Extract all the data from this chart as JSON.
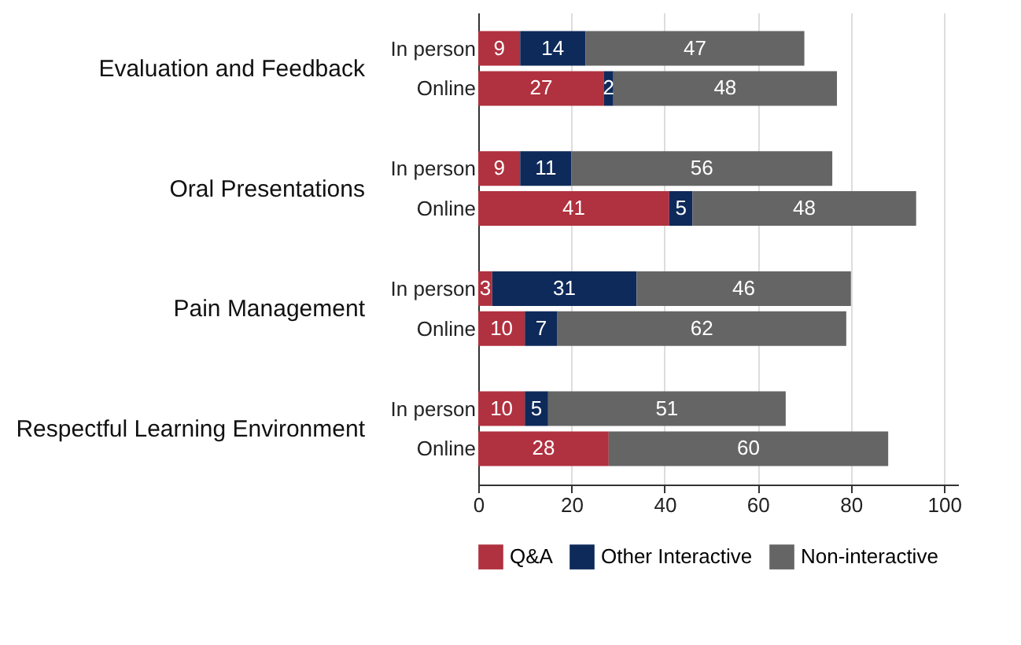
{
  "chart_data": {
    "type": "bar",
    "orientation": "horizontal",
    "stacked": true,
    "categories": [
      "In person",
      "Online",
      "In person",
      "Online",
      "In person",
      "Online",
      "In person",
      "Online"
    ],
    "annotations": [
      "Evaluation and Feedback",
      "Oral Presentations",
      "Pain Management",
      "Respectful Learning Environment"
    ],
    "series": [
      {
        "name": "Q&A",
        "color": "#b0313f",
        "values": [
          9,
          27,
          9,
          41,
          3,
          10,
          10,
          28
        ],
        "value_labels": [
          "9",
          "27",
          "9",
          "41",
          "3",
          "10",
          "10",
          "28"
        ]
      },
      {
        "name": "Other Interactive",
        "color": "#0e2a5a",
        "values": [
          14,
          2,
          11,
          5,
          31,
          7,
          5,
          0
        ],
        "value_labels": [
          "14",
          "2",
          "11",
          "5",
          "31",
          "7",
          "5",
          null
        ]
      },
      {
        "name": "Non-interactive",
        "color": "#656565",
        "values": [
          47,
          48,
          56,
          48,
          46,
          62,
          51,
          60
        ],
        "value_labels": [
          "47",
          "48",
          "56",
          "48",
          "46",
          "62",
          "51",
          "60"
        ]
      }
    ],
    "xlim": [
      0,
      103
    ],
    "xticks": [
      0,
      20,
      40,
      60,
      80,
      100
    ],
    "grid": "x",
    "legend": "bottom"
  }
}
